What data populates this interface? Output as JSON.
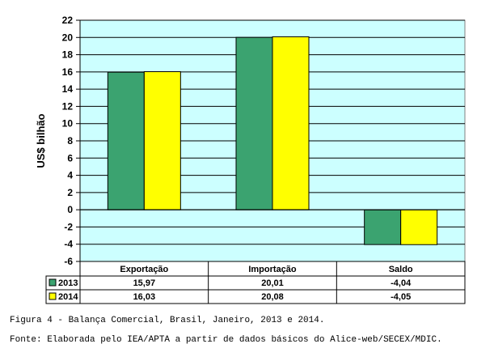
{
  "chart_data": {
    "type": "bar",
    "ylabel": "US$ bilhão",
    "ylim": [
      -6,
      22
    ],
    "yticks": [
      22,
      20,
      18,
      16,
      14,
      12,
      10,
      8,
      6,
      4,
      2,
      0,
      -2,
      -4,
      -6
    ],
    "grid": true,
    "categories": [
      "Exportação",
      "Importação",
      "Saldo"
    ],
    "series": [
      {
        "name": "2013",
        "color": "#3ba370",
        "values": [
          15.97,
          20.01,
          -4.04
        ],
        "labels": [
          "15,97",
          "20,01",
          "-4,04"
        ]
      },
      {
        "name": "2014",
        "color": "#ffff00",
        "values": [
          16.03,
          20.08,
          -4.05
        ],
        "labels": [
          "16,03",
          "20,08",
          "-4,05"
        ]
      }
    ],
    "plot_background": "#ccffff"
  },
  "captions": {
    "figure": "Figura 4 - Balança Comercial, Brasil, Janeiro, 2013 e 2014.",
    "source": "Fonte: Elaborada pelo IEA/APTA a partir de dados básicos do Alice-web/SECEX/MDIC."
  }
}
